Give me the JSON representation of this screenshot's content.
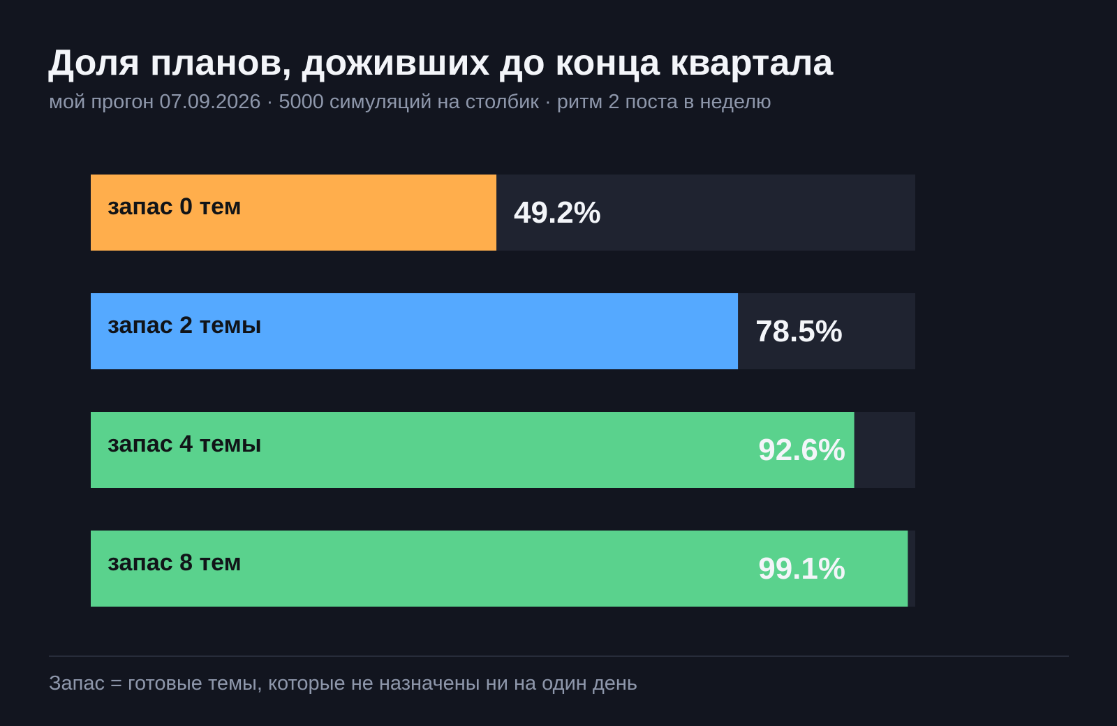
{
  "header": {
    "title": "Доля планов, доживших до конца квартала",
    "subtitle": "мой прогон 07.09.2026 · 5000 симуляций на столбик · ритм 2 поста в неделю"
  },
  "chart_data": {
    "type": "bar",
    "orientation": "horizontal",
    "title": "Доля планов, доживших до конца квартала",
    "categories": [
      "запас 0 тем",
      "запас 2 темы",
      "запас 4 темы",
      "запас 8 тем"
    ],
    "values": [
      49.2,
      78.5,
      92.6,
      99.1
    ],
    "value_labels": [
      "49.2%",
      "78.5%",
      "92.6%",
      "99.1%"
    ],
    "unit": "%",
    "xlim": [
      0,
      100
    ],
    "colors": [
      "#ffae4c",
      "#55a9ff",
      "#5ad28d",
      "#5ad28d"
    ],
    "track_color": "#1f2330",
    "category_label_color": "#111418",
    "value_label_color": "#f3f5f9",
    "grid": false,
    "legend": "none"
  },
  "footer": {
    "note": "Запас = готовые темы, которые не назначены ни на один день"
  }
}
